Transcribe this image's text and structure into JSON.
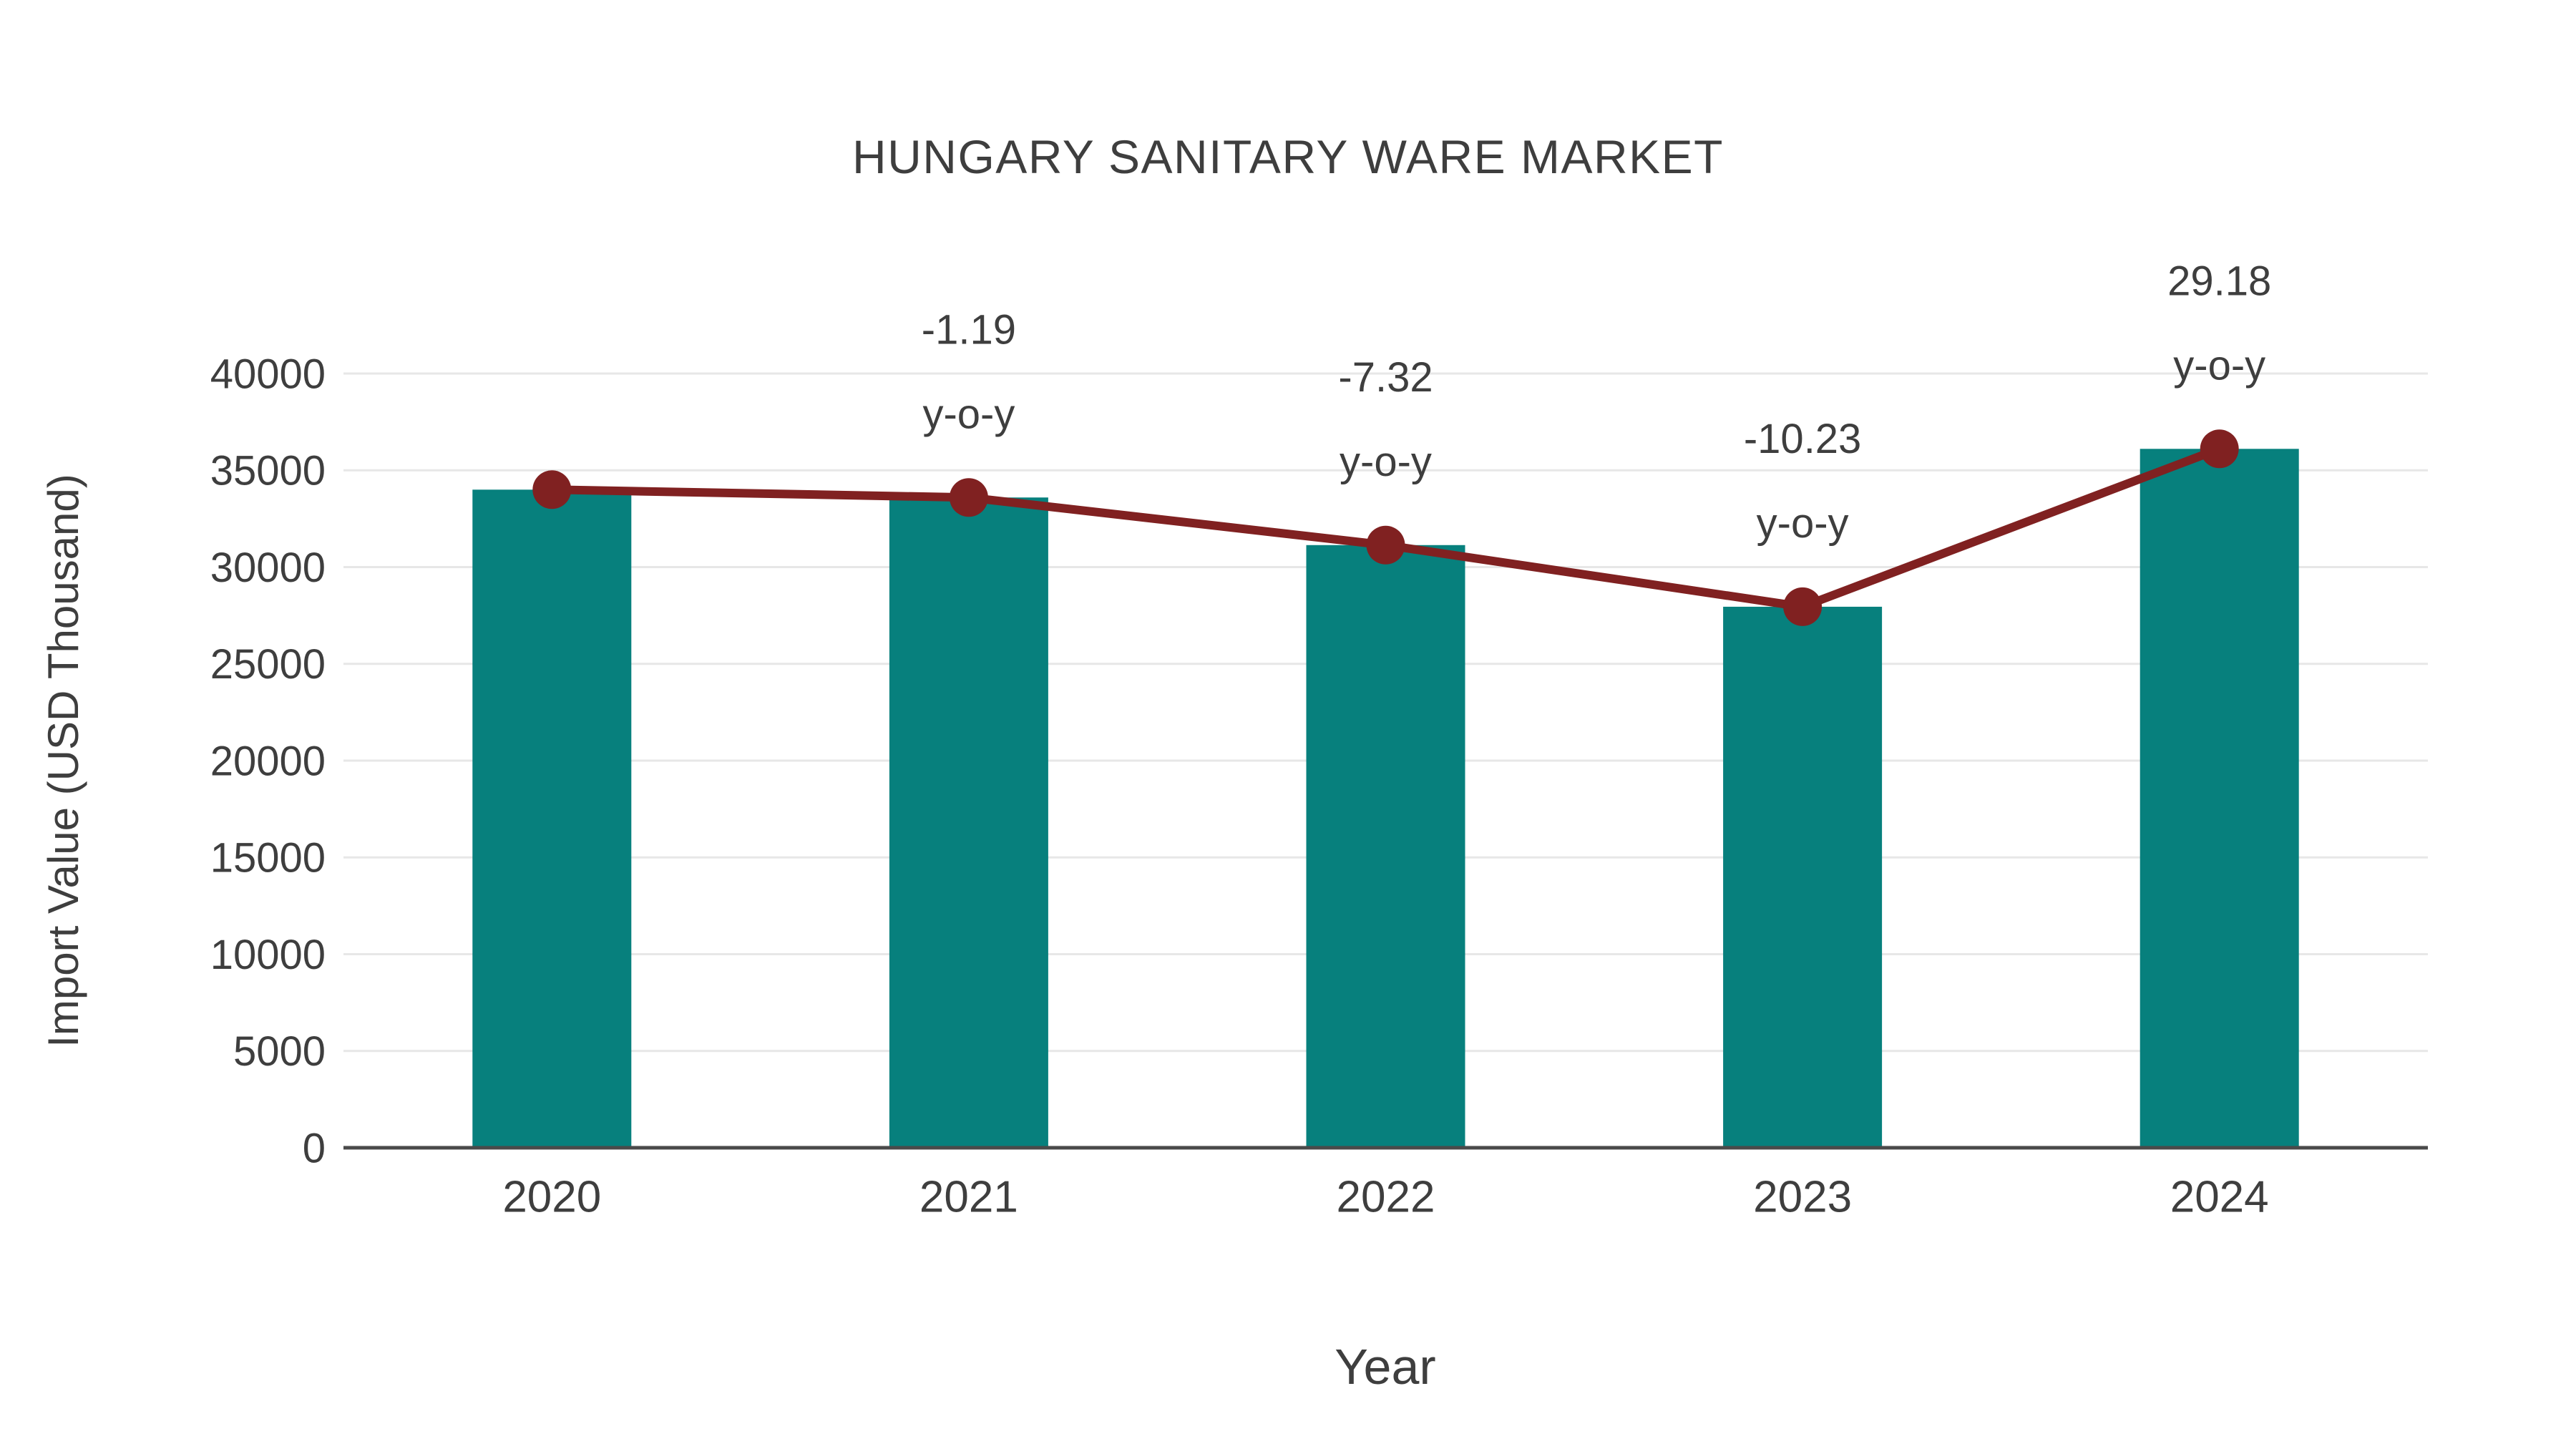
{
  "title": "HUNGARY SANITARY WARE MARKET",
  "chart_data": {
    "type": "bar",
    "title": "HUNGARY SANITARY WARE MARKET",
    "categories": [
      "2020",
      "2021",
      "2022",
      "2023",
      "2024"
    ],
    "series": [
      {
        "name": "Import Value bars",
        "type": "bar",
        "values": [
          34000,
          33595,
          31136,
          27951,
          36108
        ]
      },
      {
        "name": "Import Value trend line",
        "type": "line",
        "values": [
          34000,
          33595,
          31136,
          27951,
          36108
        ]
      }
    ],
    "annotations": [
      {
        "category": "2021",
        "line1": "-1.19",
        "line2": "y-o-y"
      },
      {
        "category": "2022",
        "line1": "-7.32",
        "line2": "y-o-y"
      },
      {
        "category": "2023",
        "line1": "-10.23",
        "line2": "y-o-y"
      },
      {
        "category": "2024",
        "line1": "29.18",
        "line2": "y-o-y"
      }
    ],
    "xlabel": "Year",
    "ylabel": "Import Value (USD Thousand)",
    "ylim": [
      0,
      40000
    ],
    "ytick_step": 5000,
    "yticks": [
      0,
      5000,
      10000,
      15000,
      20000,
      25000,
      30000,
      35000,
      40000
    ],
    "grid": true,
    "legend_position": "none"
  },
  "colors": {
    "bar": "#07807d",
    "line": "#802121",
    "marker": "#802121",
    "text": "#3e3e3e",
    "grid": "#e7e7e7",
    "axis": "#4a4a4a",
    "background": "#ffffff"
  }
}
